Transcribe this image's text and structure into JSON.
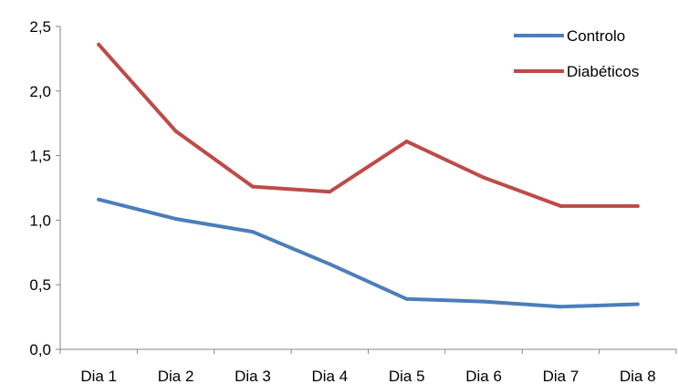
{
  "chart_data": {
    "type": "line",
    "categories": [
      "Dia 1",
      "Dia 2",
      "Dia 3",
      "Dia 4",
      "Dia 5",
      "Dia 6",
      "Dia 7",
      "Dia 8"
    ],
    "series": [
      {
        "name": "Controlo",
        "color": "#4a7ebb",
        "values": [
          1.16,
          1.01,
          0.91,
          0.66,
          0.39,
          0.37,
          0.33,
          0.35
        ]
      },
      {
        "name": "Diabéticos",
        "color": "#be4b48",
        "values": [
          2.36,
          1.69,
          1.26,
          1.22,
          1.61,
          1.33,
          1.11,
          1.11
        ]
      }
    ],
    "yticks": [
      "0,0",
      "0,5",
      "1,0",
      "1,5",
      "2,0",
      "2,5"
    ],
    "ylim": [
      0,
      2.5
    ],
    "grid": false,
    "legend": "top-right"
  }
}
